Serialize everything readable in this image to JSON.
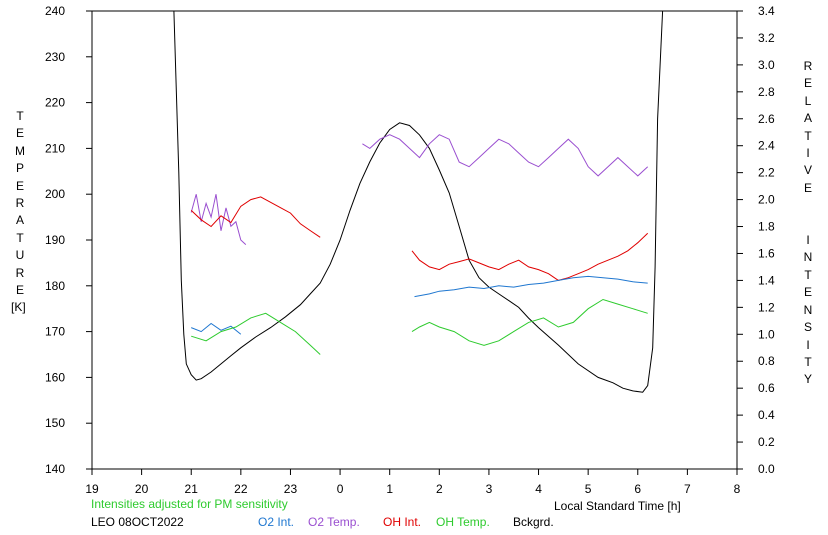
{
  "chart_data": {
    "type": "line",
    "xlabel": "Local Standard Time [h]",
    "left_axis_label": "TEMPERATURE",
    "left_axis_unit": "[K]",
    "right_axis_label": "RELATIVE  INTENSITY",
    "x_range": [
      19,
      32
    ],
    "x_tick_labels": [
      "19",
      "20",
      "21",
      "22",
      "23",
      "0",
      "1",
      "2",
      "3",
      "4",
      "5",
      "6",
      "7",
      "8"
    ],
    "left_ylim": [
      140,
      240
    ],
    "left_y_ticks": [
      140,
      150,
      160,
      170,
      180,
      190,
      200,
      210,
      220,
      230,
      240
    ],
    "right_ylim": [
      0.0,
      3.4
    ],
    "right_y_ticks": [
      "0.0",
      "0.2",
      "0.4",
      "0.6",
      "0.8",
      "1.0",
      "1.2",
      "1.4",
      "1.6",
      "1.8",
      "2.0",
      "2.2",
      "2.4",
      "2.6",
      "2.8",
      "3.0",
      "3.2",
      "3.4"
    ],
    "note": "Intensities adjusted for PM sensitivity",
    "station": "LEO 08OCT2022",
    "colors": {
      "o2_int": "#1f77d0",
      "o2_temp": "#9a4fd0",
      "oh_int": "#e00000",
      "oh_temp": "#2ecb2e",
      "background": "#000000",
      "note": "#2ecb2e"
    },
    "series": [
      {
        "name": "Bckgrd.",
        "key": "background",
        "axis": "right",
        "color": "#000000",
        "x": [
          20.65,
          20.75,
          20.8,
          20.85,
          20.9,
          21.0,
          21.1,
          21.2,
          21.4,
          21.6,
          21.8,
          22.0,
          22.3,
          22.6,
          22.9,
          23.2,
          23.4,
          23.6,
          23.8,
          24.0,
          24.2,
          24.4,
          24.6,
          24.8,
          25.0,
          25.2,
          25.4,
          25.6,
          25.8,
          26.0,
          26.2,
          26.4,
          26.6,
          26.8,
          27.0,
          27.2,
          27.4,
          27.6,
          27.8,
          28.0,
          28.4,
          28.8,
          29.2,
          29.5,
          29.7,
          29.9,
          30.1,
          30.2,
          30.3,
          30.35,
          30.4,
          30.5
        ],
        "y": [
          3.4,
          2.2,
          1.4,
          1.0,
          0.78,
          0.7,
          0.66,
          0.67,
          0.72,
          0.78,
          0.84,
          0.9,
          0.98,
          1.05,
          1.13,
          1.22,
          1.3,
          1.38,
          1.52,
          1.7,
          1.92,
          2.12,
          2.28,
          2.42,
          2.52,
          2.57,
          2.55,
          2.48,
          2.38,
          2.22,
          2.05,
          1.8,
          1.55,
          1.42,
          1.35,
          1.3,
          1.25,
          1.2,
          1.12,
          1.05,
          0.92,
          0.78,
          0.68,
          0.64,
          0.6,
          0.58,
          0.57,
          0.62,
          0.9,
          1.5,
          2.6,
          3.4
        ]
      },
      {
        "name": "O2 Temp.",
        "key": "o2_temp",
        "axis": "left",
        "color": "#9a4fd0",
        "segments": [
          {
            "x": [
              21.0,
              21.1,
              21.2,
              21.3,
              21.4,
              21.5,
              21.6,
              21.7,
              21.8,
              21.9,
              22.0,
              22.1
            ],
            "y": [
              196,
              200,
              194,
              198,
              195,
              200,
              192,
              197,
              193,
              194,
              190,
              189
            ]
          },
          {
            "x": [
              24.45,
              24.6,
              24.8,
              25.0,
              25.2,
              25.4,
              25.6,
              25.8,
              26.0,
              26.2,
              26.4,
              26.6,
              26.8,
              27.0,
              27.2,
              27.4,
              27.6,
              27.8,
              28.0,
              28.2,
              28.4,
              28.6,
              28.8,
              29.0,
              29.2,
              29.4,
              29.6,
              29.8,
              30.0,
              30.2
            ],
            "y": [
              211,
              210,
              212,
              213,
              212,
              210,
              208,
              211,
              213,
              212,
              207,
              206,
              208,
              210,
              212,
              211,
              209,
              207,
              206,
              208,
              210,
              212,
              210,
              206,
              204,
              206,
              208,
              206,
              204,
              206
            ]
          }
        ]
      },
      {
        "name": "OH Int.",
        "key": "oh_int",
        "axis": "right",
        "color": "#e00000",
        "segments": [
          {
            "x": [
              21.0,
              21.2,
              21.4,
              21.6,
              21.8,
              22.0,
              22.2,
              22.4,
              22.6,
              22.8,
              23.0,
              23.2,
              23.4,
              23.6
            ],
            "y": [
              1.92,
              1.85,
              1.8,
              1.88,
              1.83,
              1.95,
              2.0,
              2.02,
              1.98,
              1.94,
              1.9,
              1.82,
              1.77,
              1.72
            ]
          },
          {
            "x": [
              25.45,
              25.6,
              25.8,
              26.0,
              26.2,
              26.4,
              26.6,
              26.8,
              27.0,
              27.2,
              27.4,
              27.6,
              27.8,
              28.0,
              28.2,
              28.4,
              28.6,
              28.8,
              29.0,
              29.2,
              29.4,
              29.6,
              29.8,
              30.0,
              30.2
            ],
            "y": [
              1.62,
              1.55,
              1.5,
              1.48,
              1.52,
              1.54,
              1.56,
              1.53,
              1.5,
              1.48,
              1.52,
              1.55,
              1.5,
              1.48,
              1.45,
              1.4,
              1.42,
              1.45,
              1.48,
              1.52,
              1.55,
              1.58,
              1.62,
              1.68,
              1.75
            ]
          }
        ]
      },
      {
        "name": "O2 Int.",
        "key": "o2_int",
        "axis": "right",
        "color": "#1f77d0",
        "segments": [
          {
            "x": [
              21.0,
              21.2,
              21.4,
              21.6,
              21.8,
              22.0
            ],
            "y": [
              1.05,
              1.02,
              1.08,
              1.03,
              1.06,
              1.0
            ]
          },
          {
            "x": [
              25.5,
              25.8,
              26.0,
              26.3,
              26.6,
              26.9,
              27.2,
              27.5,
              27.8,
              28.1,
              28.4,
              28.7,
              29.0,
              29.3,
              29.6,
              29.9,
              30.2
            ],
            "y": [
              1.28,
              1.3,
              1.32,
              1.33,
              1.35,
              1.34,
              1.36,
              1.35,
              1.37,
              1.38,
              1.4,
              1.42,
              1.43,
              1.42,
              1.41,
              1.39,
              1.38
            ]
          }
        ]
      },
      {
        "name": "OH Temp.",
        "key": "oh_temp",
        "axis": "left",
        "color": "#2ecb2e",
        "segments": [
          {
            "x": [
              21.0,
              21.3,
              21.6,
              21.9,
              22.2,
              22.5,
              22.8,
              23.1,
              23.4,
              23.6
            ],
            "y": [
              169,
              168,
              170,
              171,
              173,
              174,
              172,
              170,
              167,
              165
            ]
          },
          {
            "x": [
              25.45,
              25.6,
              25.8,
              26.0,
              26.3,
              26.6,
              26.9,
              27.2,
              27.5,
              27.8,
              28.1,
              28.4,
              28.7,
              29.0,
              29.3,
              29.6,
              29.9,
              30.2
            ],
            "y": [
              170,
              171,
              172,
              171,
              170,
              168,
              167,
              168,
              170,
              172,
              173,
              171,
              172,
              175,
              177,
              176,
              175,
              174
            ]
          }
        ]
      }
    ]
  },
  "legend": {
    "o2_int": "O2 Int.",
    "o2_temp": "O2 Temp.",
    "oh_int": "OH Int.",
    "oh_temp": "OH Temp.",
    "background": "Bckgrd."
  }
}
